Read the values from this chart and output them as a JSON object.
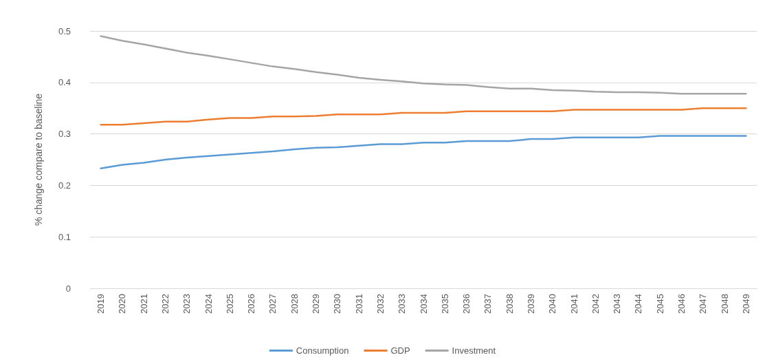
{
  "chart_data": {
    "type": "line",
    "ylabel": "% change compare to baseline",
    "categories": [
      "2019",
      "2020",
      "2021",
      "2022",
      "2023",
      "2024",
      "2025",
      "2026",
      "2027",
      "2028",
      "2029",
      "2030",
      "2031",
      "2032",
      "2033",
      "2034",
      "2035",
      "2036",
      "2037",
      "2038",
      "2039",
      "2040",
      "2041",
      "2042",
      "2043",
      "2044",
      "2045",
      "2046",
      "2047",
      "2048",
      "2049"
    ],
    "series": [
      {
        "name": "Consumption",
        "color": "#5b9bd5",
        "values": [
          0.233,
          0.24,
          0.244,
          0.25,
          0.254,
          0.257,
          0.26,
          0.263,
          0.266,
          0.27,
          0.273,
          0.274,
          0.277,
          0.28,
          0.28,
          0.283,
          0.283,
          0.286,
          0.286,
          0.286,
          0.29,
          0.29,
          0.293,
          0.293,
          0.293,
          0.293,
          0.296,
          0.296,
          0.296,
          0.296,
          0.296
        ]
      },
      {
        "name": "GDP",
        "color": "#ed7d31",
        "values": [
          0.318,
          0.318,
          0.321,
          0.324,
          0.324,
          0.328,
          0.331,
          0.331,
          0.334,
          0.334,
          0.335,
          0.338,
          0.338,
          0.338,
          0.341,
          0.341,
          0.341,
          0.344,
          0.344,
          0.344,
          0.344,
          0.344,
          0.347,
          0.347,
          0.347,
          0.347,
          0.347,
          0.347,
          0.35,
          0.35,
          0.35
        ]
      },
      {
        "name": "Investment",
        "color": "#a5a5a5",
        "values": [
          0.49,
          0.481,
          0.474,
          0.466,
          0.458,
          0.452,
          0.445,
          0.438,
          0.431,
          0.426,
          0.42,
          0.415,
          0.409,
          0.405,
          0.402,
          0.398,
          0.396,
          0.395,
          0.391,
          0.388,
          0.388,
          0.385,
          0.384,
          0.382,
          0.381,
          0.381,
          0.38,
          0.378,
          0.378,
          0.378,
          0.378
        ]
      }
    ],
    "ylim": [
      0,
      0.5
    ],
    "yticks": [
      0,
      0.1,
      0.2,
      0.3,
      0.4,
      0.5
    ],
    "grid": "y",
    "legend": "bottom",
    "marker": "none",
    "line_style": "solid"
  }
}
